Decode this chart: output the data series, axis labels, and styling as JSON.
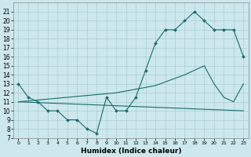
{
  "xlabel": "Humidex (Indice chaleur)",
  "bg_color": "#cce8ec",
  "grid_color": "#aacdd4",
  "line_color": "#1a6b6b",
  "xlim": [
    -0.5,
    23.5
  ],
  "ylim": [
    7,
    22
  ],
  "xticks": [
    0,
    1,
    2,
    3,
    4,
    5,
    6,
    7,
    8,
    9,
    10,
    11,
    12,
    13,
    14,
    15,
    16,
    17,
    18,
    19,
    20,
    21,
    22,
    23
  ],
  "yticks": [
    7,
    8,
    9,
    10,
    11,
    12,
    13,
    14,
    15,
    16,
    17,
    18,
    19,
    20,
    21
  ],
  "line1_x": [
    0,
    1,
    2,
    3,
    4,
    5,
    6,
    7,
    8,
    9,
    10,
    11,
    12,
    13,
    14,
    15,
    16,
    17,
    18,
    19,
    20,
    21,
    22,
    23
  ],
  "line1_y": [
    13,
    11.5,
    11,
    10,
    10,
    9,
    9,
    8,
    7.5,
    11.5,
    10,
    10,
    11.5,
    14.5,
    17.5,
    19,
    19,
    20,
    21,
    20,
    19,
    19,
    19,
    16
  ],
  "line2_x": [
    0,
    23
  ],
  "line2_y": [
    11,
    10
  ],
  "line3_x": [
    0,
    1,
    2,
    3,
    4,
    5,
    6,
    7,
    8,
    9,
    10,
    11,
    12,
    13,
    14,
    15,
    16,
    17,
    18,
    19,
    20,
    21,
    22,
    23
  ],
  "line3_y": [
    11,
    11.1,
    11.2,
    11.3,
    11.4,
    11.5,
    11.6,
    11.7,
    11.8,
    11.9,
    12.0,
    12.2,
    12.4,
    12.6,
    12.8,
    13.2,
    13.6,
    14.0,
    14.5,
    15.0,
    13.0,
    11.5,
    11,
    13
  ],
  "tick_fontsize": 5.5,
  "xlabel_fontsize": 6.5
}
